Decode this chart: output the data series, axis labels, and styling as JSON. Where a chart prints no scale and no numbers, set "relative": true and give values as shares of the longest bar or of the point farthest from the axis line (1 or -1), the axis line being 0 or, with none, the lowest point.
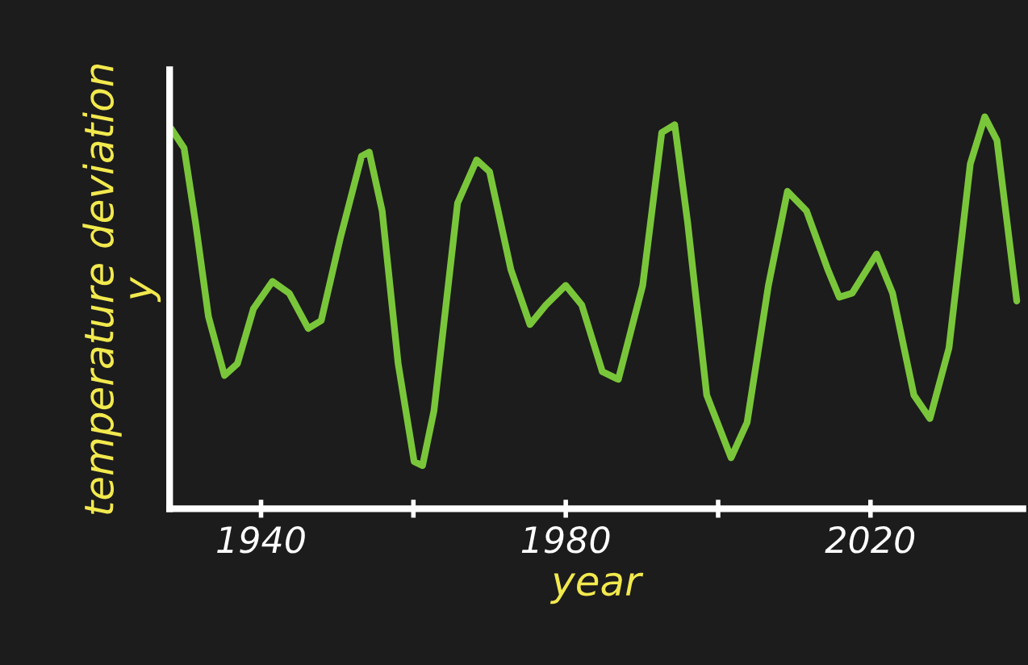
{
  "chart_data": {
    "type": "line",
    "relative": true,
    "xlabel": "year",
    "ylabel": "temperature deviation\ny",
    "x": [
      1928.2,
      1929.9,
      1931.4,
      1933.1,
      1935.2,
      1936.9,
      1939.0,
      1941.5,
      1943.7,
      1946.2,
      1947.9,
      1950.4,
      1953.2,
      1954.2,
      1955.9,
      1958.0,
      1960.1,
      1961.2,
      1962.7,
      1965.8,
      1968.3,
      1970.0,
      1972.8,
      1975.3,
      1977.4,
      1980.0,
      1982.1,
      1984.8,
      1986.9,
      1990.1,
      1992.6,
      1994.3,
      1996.0,
      1998.5,
      2001.7,
      2003.8,
      2006.6,
      2009.1,
      2011.6,
      2014.4,
      2015.9,
      2017.6,
      2020.8,
      2022.9,
      2025.7,
      2027.8,
      2030.3,
      2033.1,
      2035.0,
      2036.6,
      2039.2
    ],
    "series": [
      {
        "color": "#7ac63a",
        "values": [
          0.97,
          0.92,
          0.73,
          0.49,
          0.34,
          0.37,
          0.51,
          0.58,
          0.55,
          0.46,
          0.48,
          0.69,
          0.9,
          0.91,
          0.76,
          0.37,
          0.12,
          0.11,
          0.25,
          0.78,
          0.89,
          0.86,
          0.61,
          0.47,
          0.52,
          0.57,
          0.52,
          0.35,
          0.33,
          0.57,
          0.96,
          0.98,
          0.73,
          0.29,
          0.13,
          0.22,
          0.57,
          0.81,
          0.76,
          0.61,
          0.54,
          0.55,
          0.65,
          0.55,
          0.29,
          0.23,
          0.41,
          0.88,
          1.0,
          0.94,
          0.53
        ]
      }
    ],
    "xlim": [
      1928,
      2040
    ],
    "xticks": [
      1940,
      {
        "value": 1960,
        "label": null
      },
      1980,
      {
        "value": 2000,
        "label": null
      },
      2020
    ],
    "marker": "none",
    "line_style": "solid"
  }
}
